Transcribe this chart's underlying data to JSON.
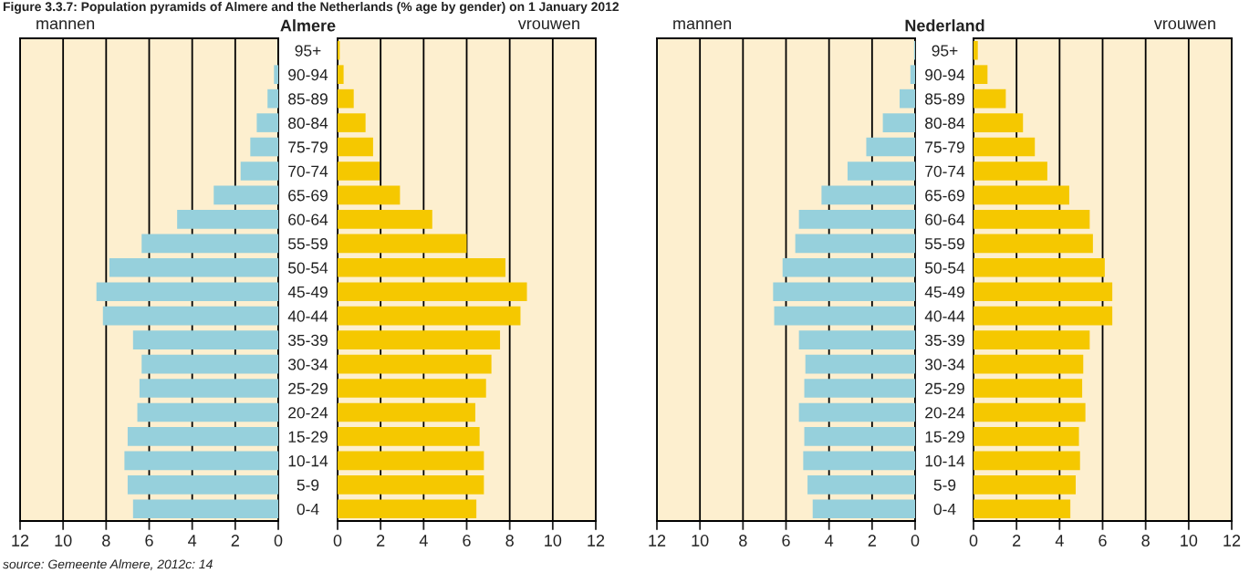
{
  "chart_data": [
    {
      "type": "bar",
      "orientation": "horizontal",
      "title": "Almere",
      "subtitle": "mannen",
      "categories": [
        "95+",
        "90-94",
        "85-89",
        "80-84",
        "75-79",
        "70-74",
        "65-69",
        "60-64",
        "55-59",
        "50-54",
        "45-49",
        "40-44",
        "35-39",
        "30-34",
        "25-29",
        "20-24",
        "15-29",
        "10-14",
        "5-9",
        "0-4"
      ],
      "series": [
        {
          "color": "#96d0dc",
          "values": [
            null,
            0.2,
            0.5,
            1.0,
            1.3,
            1.75,
            3.0,
            4.7,
            6.35,
            7.85,
            8.45,
            8.15,
            6.75,
            6.35,
            6.45,
            6.55,
            7.0,
            7.15,
            7.0,
            6.75
          ]
        }
      ],
      "xlim": [
        12,
        0
      ],
      "xticks": [
        12,
        10,
        8,
        6,
        4,
        2,
        0
      ],
      "grid": "x",
      "annotations": [
        "Figure 3.3.7: Population pyramids of Almere and the Netherlands (% age by gender) on 1 January 2012",
        "source: Gemeente Almere, 2012c: 14"
      ]
    },
    {
      "type": "bar",
      "orientation": "horizontal",
      "subtitle": "vrouwen",
      "series": [
        {
          "color": "#f5c800",
          "values": [
            0.1,
            0.28,
            0.75,
            1.3,
            1.65,
            1.95,
            2.9,
            4.4,
            6.0,
            7.8,
            8.8,
            8.5,
            7.55,
            7.15,
            6.9,
            6.4,
            6.6,
            6.8,
            6.8,
            6.45
          ]
        }
      ],
      "xlim": [
        0,
        12
      ],
      "xticks": [
        0,
        2,
        4,
        6,
        8,
        10,
        12
      ],
      "grid": "x",
      "tick_labels": "x"
    },
    {
      "type": "bar",
      "orientation": "horizontal",
      "title": "Nederland",
      "subtitle": "mannen",
      "categories": [
        "95+",
        "90-94",
        "85-89",
        "80-84",
        "75-79",
        "70-74",
        "65-69",
        "60-64",
        "55-59",
        "50-54",
        "45-49",
        "40-44",
        "35-39",
        "30-34",
        "25-29",
        "20-24",
        "15-29",
        "10-14",
        "5-9",
        "0-4"
      ],
      "series": [
        {
          "color": "#96d0dc",
          "values": [
            0.05,
            0.22,
            0.72,
            1.5,
            2.27,
            3.14,
            4.35,
            5.4,
            5.57,
            6.16,
            6.6,
            6.55,
            5.4,
            5.1,
            5.15,
            5.4,
            5.15,
            5.2,
            5.0,
            4.76
          ]
        }
      ],
      "xlim": [
        12,
        0
      ],
      "xticks": [
        12,
        10,
        8,
        6,
        4,
        2,
        0
      ],
      "grid": "x"
    },
    {
      "type": "bar",
      "orientation": "horizontal",
      "subtitle": "vrouwen",
      "series": [
        {
          "color": "#f5c800",
          "values": [
            0.2,
            0.65,
            1.5,
            2.3,
            2.85,
            3.43,
            4.45,
            5.4,
            5.55,
            6.1,
            6.45,
            6.45,
            5.4,
            5.1,
            5.05,
            5.2,
            4.9,
            4.95,
            4.75,
            4.5
          ]
        }
      ],
      "xlim": [
        0,
        12
      ],
      "xticks": [
        0,
        2,
        4,
        6,
        8,
        10,
        12
      ],
      "grid": "x",
      "tick_labels": "x"
    }
  ]
}
